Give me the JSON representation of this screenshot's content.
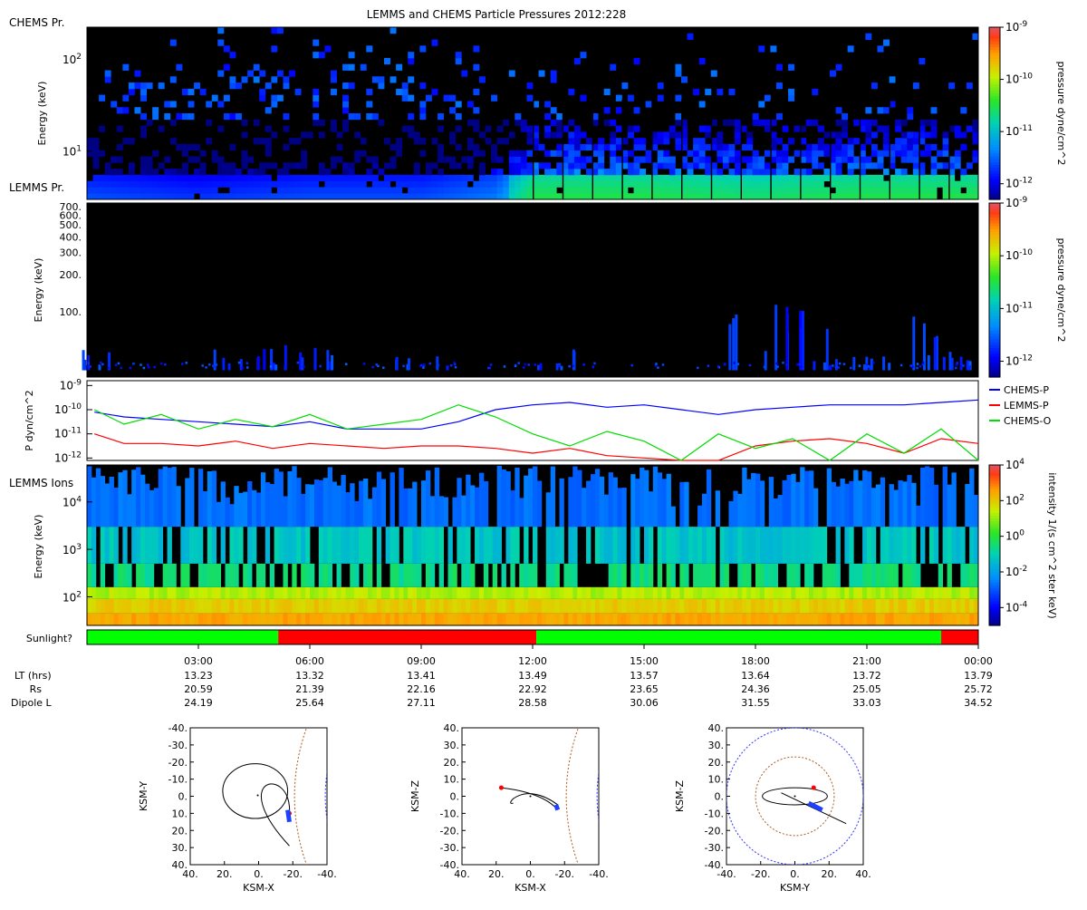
{
  "title": "LEMMS and CHEMS Particle Pressures  2012:228",
  "panels": {
    "chems": {
      "label": "CHEMS Pr.",
      "ylabel": "Energy (keV)",
      "ylim": [
        3,
        220
      ],
      "yticks": [
        {
          "v": 10,
          "base": "10",
          "exp": "1"
        },
        {
          "v": 100,
          "base": "10",
          "exp": "2"
        }
      ],
      "cbar_label": "pressure dyne/cm^2",
      "cbar_ticks": [
        {
          "v": -9,
          "base": "10",
          "exp": "-9"
        },
        {
          "v": -10,
          "base": "10",
          "exp": "-10"
        },
        {
          "v": -11,
          "base": "10",
          "exp": "-11"
        },
        {
          "v": -12,
          "base": "10",
          "exp": "-12"
        }
      ],
      "cbar_range": [
        -12.3,
        -9
      ]
    },
    "lemms": {
      "label": "LEMMS Pr.",
      "ylabel": "Energy (keV)",
      "ylim": [
        30,
        750
      ],
      "yticks": [
        {
          "v": 700,
          "label": "700."
        },
        {
          "v": 600,
          "label": "600."
        },
        {
          "v": 500,
          "label": "500."
        },
        {
          "v": 400,
          "label": "400."
        },
        {
          "v": 300,
          "label": "300."
        },
        {
          "v": 200,
          "label": "200."
        },
        {
          "v": 100,
          "label": "100."
        }
      ],
      "cbar_label": "pressure dyne/cm^2",
      "cbar_ticks": [
        {
          "v": -9,
          "base": "10",
          "exp": "-9"
        },
        {
          "v": -10,
          "base": "10",
          "exp": "-10"
        },
        {
          "v": -11,
          "base": "10",
          "exp": "-11"
        },
        {
          "v": -12,
          "base": "10",
          "exp": "-12"
        }
      ],
      "cbar_range": [
        -12.3,
        -9
      ]
    },
    "pressure": {
      "ylabel": "P dyn/cm^2",
      "ylim": [
        -12.1,
        -8.8
      ],
      "yticks": [
        {
          "v": -9,
          "base": "10",
          "exp": "-9"
        },
        {
          "v": -10,
          "base": "10",
          "exp": "-10"
        },
        {
          "v": -11,
          "base": "10",
          "exp": "-11"
        },
        {
          "v": -12,
          "base": "10",
          "exp": "-12"
        }
      ],
      "legend": [
        {
          "name": "CHEMS-P",
          "color": "#0000ff"
        },
        {
          "name": "LEMMS-P",
          "color": "#ff0000"
        },
        {
          "name": "CHEMS-O",
          "color": "#00dd00"
        }
      ]
    },
    "ions": {
      "label": "LEMMS Ions",
      "ylabel": "Energy (keV)",
      "ylim": [
        25,
        60000
      ],
      "yticks": [
        {
          "v": 100,
          "base": "10",
          "exp": "2"
        },
        {
          "v": 1000,
          "base": "10",
          "exp": "3"
        },
        {
          "v": 10000,
          "base": "10",
          "exp": "4"
        }
      ],
      "cbar_label": "intensity 1/(s cm^2 ster keV)",
      "cbar_ticks": [
        {
          "v": 4,
          "base": "10",
          "exp": "4"
        },
        {
          "v": 2,
          "base": "10",
          "exp": "2"
        },
        {
          "v": 0,
          "base": "10",
          "exp": "0"
        },
        {
          "v": -2,
          "base": "10",
          "exp": "-2"
        },
        {
          "v": -4,
          "base": "10",
          "exp": "-4"
        }
      ],
      "cbar_range": [
        -5,
        4
      ]
    },
    "sunlight": {
      "label": "Sunlight?",
      "segments": [
        {
          "from": 0,
          "to": 5.15,
          "color": "#00ff00"
        },
        {
          "from": 5.15,
          "to": 12.1,
          "color": "#ff0000"
        },
        {
          "from": 12.1,
          "to": 23.0,
          "color": "#00ff00"
        },
        {
          "from": 23.0,
          "to": 24.0,
          "color": "#ff0000"
        }
      ]
    }
  },
  "time_axis": {
    "row_labels": [
      "LT (hrs)",
      "Rs",
      "Dipole L"
    ],
    "ticks": [
      {
        "h": 3,
        "time": "03:00",
        "lt": "13.23",
        "rs": "20.59",
        "l": "24.19"
      },
      {
        "h": 6,
        "time": "06:00",
        "lt": "13.32",
        "rs": "21.39",
        "l": "25.64"
      },
      {
        "h": 9,
        "time": "09:00",
        "lt": "13.41",
        "rs": "22.16",
        "l": "27.11"
      },
      {
        "h": 12,
        "time": "12:00",
        "lt": "13.49",
        "rs": "22.92",
        "l": "28.58"
      },
      {
        "h": 15,
        "time": "15:00",
        "lt": "13.57",
        "rs": "23.65",
        "l": "30.06"
      },
      {
        "h": 18,
        "time": "18:00",
        "lt": "13.64",
        "rs": "24.36",
        "l": "31.55"
      },
      {
        "h": 21,
        "time": "21:00",
        "lt": "13.72",
        "rs": "25.05",
        "l": "33.03"
      },
      {
        "h": 24,
        "time": "00:00",
        "lt": "13.79",
        "rs": "25.72",
        "l": "34.52"
      }
    ]
  },
  "chart_data": [
    {
      "type": "heatmap",
      "title": "CHEMS Pr.",
      "ylabel": "Energy (keV)",
      "x_range_hours": [
        0,
        24
      ],
      "note": "low-energy band (3-6 keV) ~1e-11.5 to 1e-11 before 11:30, rising to ~1e-11 to 1e-10.7 after 11:30 UT; sparse blue pixels up to ~200 keV",
      "band_profile": [
        {
          "t": 0.5,
          "logP": -11.6
        },
        {
          "t": 3,
          "logP": -11.7
        },
        {
          "t": 6,
          "logP": -11.6
        },
        {
          "t": 9,
          "logP": -11.6
        },
        {
          "t": 11,
          "logP": -11.4
        },
        {
          "t": 12,
          "logP": -10.8
        },
        {
          "t": 15,
          "logP": -10.8
        },
        {
          "t": 18,
          "logP": -10.9
        },
        {
          "t": 21,
          "logP": -10.8
        },
        {
          "t": 24,
          "logP": -10.8
        }
      ]
    },
    {
      "type": "heatmap",
      "title": "LEMMS Pr.",
      "ylabel": "Energy (keV)",
      "note": "mostly black; faint blue near 40-50 keV with bursts at ~0-0.4h, 4h, 6.2h, 8-9.5h, 12.6h, 18-18.8h, 20h, 23h",
      "bursts": [
        {
          "t": 0.3,
          "Emax": 55
        },
        {
          "t": 4.0,
          "Emax": 50
        },
        {
          "t": 5.1,
          "Emax": 55
        },
        {
          "t": 6.2,
          "Emax": 55
        },
        {
          "t": 9.0,
          "Emax": 50
        },
        {
          "t": 12.6,
          "Emax": 50
        },
        {
          "t": 18.1,
          "Emax": 140
        },
        {
          "t": 19.3,
          "Emax": 110
        },
        {
          "t": 20.2,
          "Emax": 45
        },
        {
          "t": 21.1,
          "Emax": 45
        },
        {
          "t": 22.6,
          "Emax": 95
        },
        {
          "t": 23.4,
          "Emax": 45
        }
      ]
    },
    {
      "type": "line",
      "title": "Pressures",
      "ylabel": "P dyn/cm^2",
      "x_unit": "hours",
      "series": [
        {
          "name": "CHEMS-P",
          "x": [
            0.2,
            1,
            2,
            3,
            4,
            5,
            6,
            7,
            8,
            9,
            10,
            11,
            12,
            13,
            14,
            15,
            16,
            17,
            18,
            19,
            20,
            21,
            22,
            23,
            24
          ],
          "logy": [
            -10.1,
            -10.3,
            -10.4,
            -10.5,
            -10.6,
            -10.7,
            -10.5,
            -10.8,
            -10.8,
            -10.8,
            -10.5,
            -10.0,
            -9.8,
            -9.7,
            -9.9,
            -9.8,
            -10.0,
            -10.2,
            -10.0,
            -9.9,
            -9.8,
            -9.8,
            -9.8,
            -9.7,
            -9.6
          ]
        },
        {
          "name": "LEMMS-P",
          "x": [
            0.2,
            1,
            2,
            3,
            4,
            5,
            6,
            7,
            8,
            9,
            10,
            11,
            12,
            13,
            14,
            15,
            16,
            17,
            18,
            19,
            20,
            21,
            22,
            23,
            24
          ],
          "logy": [
            -11.0,
            -11.4,
            -11.4,
            -11.5,
            -11.3,
            -11.6,
            -11.4,
            -11.5,
            -11.6,
            -11.5,
            -11.5,
            -11.6,
            -11.8,
            -11.6,
            -11.9,
            -12.0,
            -12.1,
            -12.1,
            -11.5,
            -11.3,
            -11.2,
            -11.4,
            -11.8,
            -11.2,
            -11.4
          ]
        },
        {
          "name": "CHEMS-O",
          "x": [
            0.2,
            1,
            2,
            3,
            4,
            5,
            6,
            7,
            8,
            9,
            10,
            11,
            12,
            13,
            14,
            15,
            16,
            17,
            18,
            19,
            20,
            21,
            22,
            23,
            24
          ],
          "logy": [
            -10.0,
            -10.6,
            -10.2,
            -10.8,
            -10.4,
            -10.7,
            -10.2,
            -10.8,
            -10.6,
            -10.4,
            -9.8,
            -10.3,
            -11.0,
            -11.5,
            -10.9,
            -11.3,
            -12.1,
            -11.0,
            -11.6,
            -11.2,
            -12.1,
            -11.0,
            -11.8,
            -10.8,
            -12.1
          ]
        }
      ]
    },
    {
      "type": "heatmap",
      "title": "LEMMS Ions",
      "ylabel": "Energy (keV)",
      "note": "intensity ~1e2 (yellow/orange) at 25-150 keV, ~1e-1 (cyan) at 500-3000 keV, ~1e-3 (blue) above 3 MeV with spiky texture"
    }
  ],
  "orbit_plots": [
    {
      "xlabel": "KSM-X",
      "ylabel": "KSM-Y",
      "xticks": [
        "40.",
        "20.",
        "0.",
        "-20.",
        "-40."
      ],
      "yticks": [
        "-40.",
        "-30.",
        "-20.",
        "-10.",
        "0.",
        "10.",
        "20.",
        "30.",
        "40."
      ]
    },
    {
      "xlabel": "KSM-X",
      "ylabel": "KSM-Z",
      "xticks": [
        "40.",
        "20.",
        "0.",
        "-20.",
        "-40."
      ],
      "yticks": [
        "40.",
        "30.",
        "20.",
        "10.",
        "0.",
        "-10.",
        "-20.",
        "-30.",
        "-40."
      ]
    },
    {
      "xlabel": "KSM-Y",
      "ylabel": "KSM-Z",
      "xticks": [
        "-40.",
        "-20.",
        "0.",
        "20.",
        "40."
      ],
      "yticks": [
        "40.",
        "30.",
        "20.",
        "10.",
        "0.",
        "-10.",
        "-20.",
        "-30.",
        "-40."
      ]
    }
  ],
  "colors": {
    "background": "#ffffff",
    "spec_bg": "#000000",
    "sun": "#00ff00",
    "shade": "#ff0000",
    "magnetopause": "#b05a1e",
    "bowshock": "#3333ff",
    "orbit": "#000000"
  }
}
